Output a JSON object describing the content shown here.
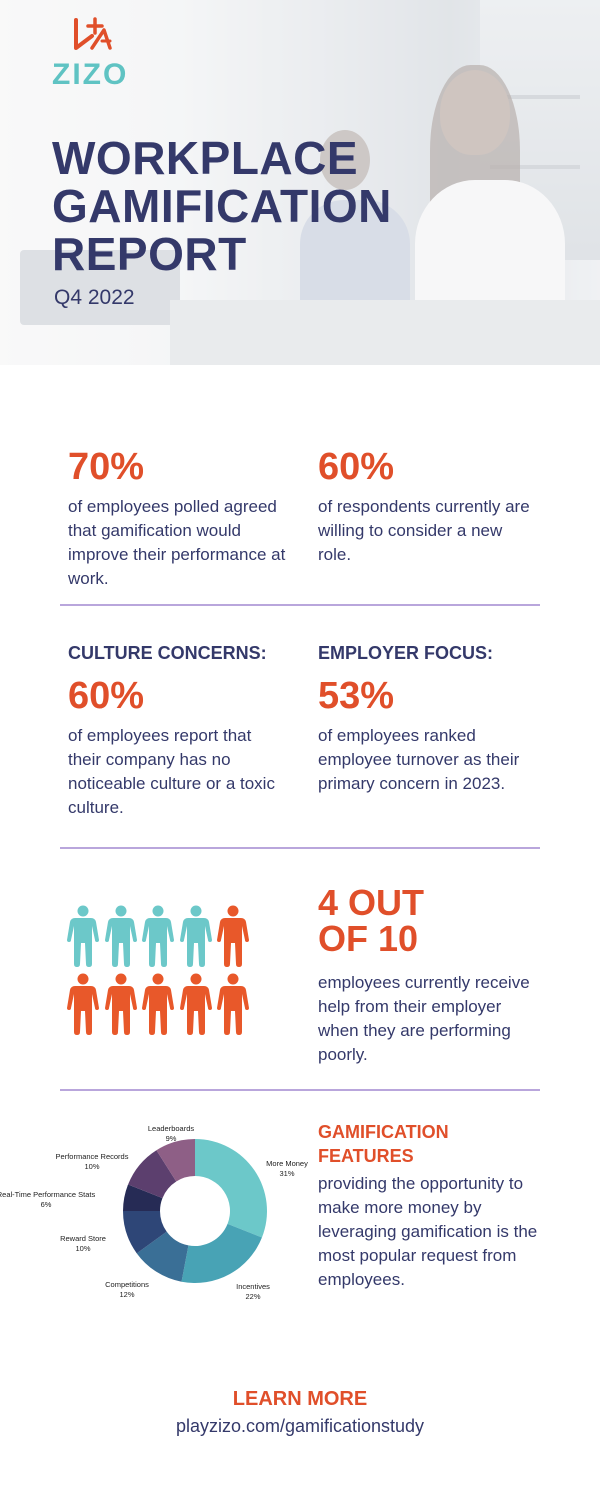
{
  "brand": {
    "name": "ZIZO",
    "logo_mark": "+-"
  },
  "header": {
    "title_lines": [
      "WORKPLACE",
      "GAMIFICATION",
      "REPORT"
    ],
    "subtitle": "Q4 2022"
  },
  "stats": [
    {
      "value": "70%",
      "text": "of employees polled agreed that gamification would improve their performance at work."
    },
    {
      "value": "60%",
      "text": "of respondents currently are willing to consider a new role."
    },
    {
      "heading": "CULTURE CONCERNS:",
      "value": "60%",
      "text": "of employees report that their company has no noticeable culture or a toxic culture."
    },
    {
      "heading": "EMPLOYER FOCUS:",
      "value": "53%",
      "text": "of employees ranked employee turnover as their primary concern in 2023."
    }
  ],
  "help": {
    "value_lines": [
      "4 OUT",
      "OF 10"
    ],
    "text": "employees currently receive help from their employer when they are performing poorly.",
    "people_total": 10,
    "people_highlighted": 4
  },
  "features": {
    "heading_lines": [
      "GAMIFICATION",
      "FEATURES"
    ],
    "text": "providing the opportunity to make more money by leveraging gamification is the most popular request from employees."
  },
  "chart_data": {
    "type": "pie",
    "style": "donut",
    "slices": [
      {
        "label": "More Money",
        "value": 31,
        "display": "31%",
        "color": "#6cc8c9"
      },
      {
        "label": "Incentives",
        "value": 22,
        "display": "22%",
        "color": "#48a3b5"
      },
      {
        "label": "Competitions",
        "value": 12,
        "display": "12%",
        "color": "#3a6f96"
      },
      {
        "label": "Reward Store",
        "value": 10,
        "display": "10%",
        "color": "#2e4677"
      },
      {
        "label": "Real-Time Performance Stats",
        "value": 6,
        "display": "6%",
        "color": "#262b55"
      },
      {
        "label": "Performance Records",
        "value": 10,
        "display": "10%",
        "color": "#5c3f6e"
      },
      {
        "label": "Leaderboards",
        "value": 9,
        "display": "9%",
        "color": "#8e5f86"
      }
    ]
  },
  "cta": {
    "label": "LEARN MORE",
    "url_text": "playzizo.com/gamificationstudy"
  },
  "colors": {
    "navy": "#34396a",
    "orange": "#e04f2a",
    "teal": "#5fc3c3",
    "divider": "#b9a6dc"
  }
}
